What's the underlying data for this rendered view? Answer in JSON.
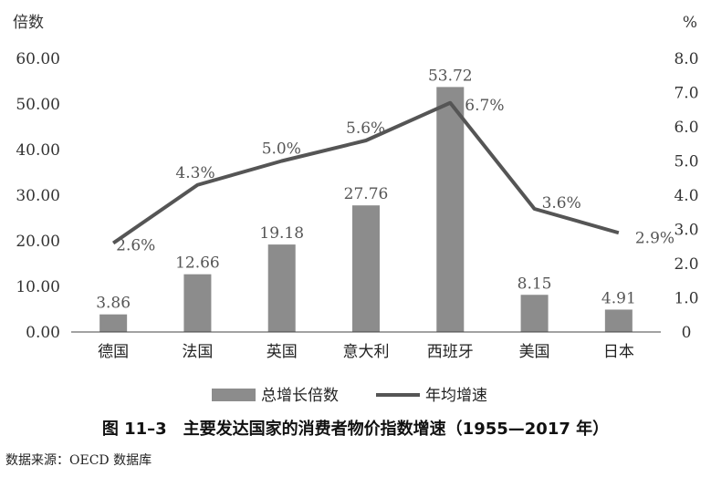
{
  "chart_data": {
    "type": "bar+line",
    "categories": [
      "德国",
      "法国",
      "英国",
      "意大利",
      "西班牙",
      "美国",
      "日本"
    ],
    "bars": {
      "name": "总增长倍数",
      "values": [
        3.86,
        12.66,
        19.18,
        27.76,
        53.72,
        8.15,
        4.91
      ],
      "labels": [
        "3.86",
        "12.66",
        "19.18",
        "27.76",
        "53.72",
        "8.15",
        "4.91"
      ],
      "color": "#8c8c8c"
    },
    "line": {
      "name": "年均增速",
      "values": [
        2.6,
        4.3,
        5.0,
        5.6,
        6.7,
        3.6,
        2.9
      ],
      "labels": [
        "2.6%",
        "4.3%",
        "5.0%",
        "5.6%",
        "6.7%",
        "3.6%",
        "2.9%"
      ],
      "color": "#555555"
    },
    "y_left": {
      "label": "倍数",
      "range": [
        0,
        60
      ],
      "ticks": [
        0,
        10,
        20,
        30,
        40,
        50,
        60
      ],
      "tick_labels": [
        "0.00",
        "10.00",
        "20.00",
        "30.00",
        "40.00",
        "50.00",
        "60.00"
      ]
    },
    "y_right": {
      "label": "%",
      "range": [
        0,
        8
      ],
      "ticks": [
        0,
        1,
        2,
        3,
        4,
        5,
        6,
        7,
        8
      ],
      "tick_labels": [
        "0",
        "1.0",
        "2.0",
        "3.0",
        "4.0",
        "5.0",
        "6.0",
        "7.0",
        "8.0"
      ]
    },
    "legend": {
      "placement": "bottom",
      "entries": [
        "总增长倍数",
        "年均增速"
      ]
    },
    "grid": false
  },
  "caption": "图 11–3　主要发达国家的消费者物价指数增速（1955—2017 年）",
  "source": "数据来源：OECD 数据库"
}
